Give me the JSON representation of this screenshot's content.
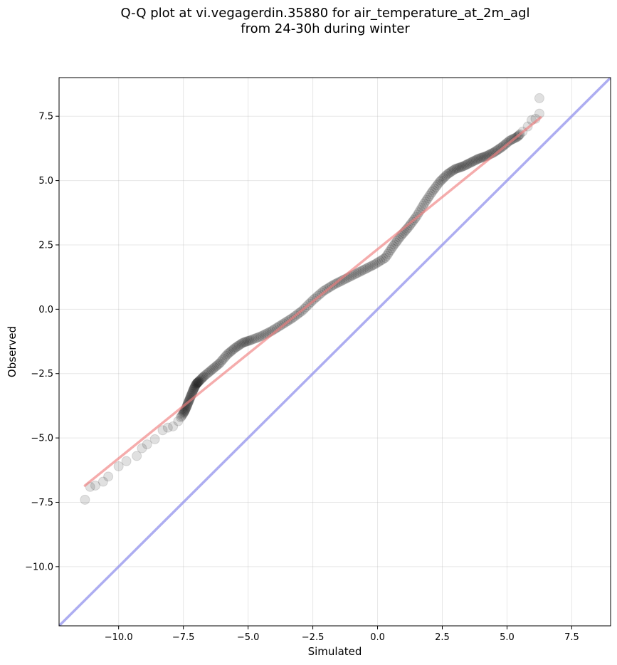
{
  "chart_data": {
    "type": "scatter",
    "title_line1": "Q-Q plot at vi.vegagerdin.35880 for air_temperature_at_2m_agl",
    "title_line2": "from 24-30h during winter",
    "xlabel": "Simulated",
    "ylabel": "Observed",
    "xlim": [
      -12.3,
      9.0
    ],
    "ylim": [
      -12.3,
      9.0
    ],
    "xticks": [
      -10.0,
      -7.5,
      -5.0,
      -2.5,
      0.0,
      2.5,
      5.0,
      7.5
    ],
    "yticks": [
      -10.0,
      -7.5,
      -5.0,
      -2.5,
      0.0,
      2.5,
      5.0,
      7.5
    ],
    "xtick_labels": [
      "−10.0",
      "−7.5",
      "−5.0",
      "−2.5",
      "0.0",
      "2.5",
      "5.0",
      "7.5"
    ],
    "ytick_labels": [
      "−10.0",
      "−7.5",
      "−5.0",
      "−2.5",
      "0.0",
      "2.5",
      "5.0",
      "7.5"
    ],
    "grid": true,
    "series": [
      {
        "kind": "points",
        "color": "#000000",
        "x": [
          -11.3,
          -11.1,
          -10.9,
          -10.6,
          -10.4,
          -10.0,
          -9.7,
          -9.3,
          -9.1,
          -8.9,
          -8.6,
          -8.3,
          -8.1,
          -7.9,
          -7.7,
          -7.5,
          -7.4,
          -7.3,
          -7.2,
          -7.1,
          -7.0,
          -6.9,
          -6.7,
          -6.4,
          -6.1,
          -5.8,
          -5.5,
          -5.2,
          -4.9,
          -4.5,
          -4.1,
          -3.7,
          -3.3,
          -2.9,
          -2.5,
          -2.1,
          -1.7,
          -1.3,
          -0.9,
          -0.5,
          -0.1,
          0.3,
          0.6,
          0.9,
          1.2,
          1.5,
          1.8,
          2.1,
          2.4,
          2.7,
          3.0,
          3.3,
          3.6,
          3.9,
          4.2,
          4.5,
          4.8,
          5.1,
          5.4,
          5.6,
          5.8,
          5.95,
          6.1,
          6.25,
          6.25
        ],
        "y": [
          -7.4,
          -6.9,
          -6.85,
          -6.7,
          -6.5,
          -6.1,
          -5.9,
          -5.7,
          -5.4,
          -5.25,
          -5.05,
          -4.7,
          -4.6,
          -4.55,
          -4.35,
          -4.05,
          -3.85,
          -3.6,
          -3.35,
          -3.1,
          -2.9,
          -2.8,
          -2.6,
          -2.35,
          -2.1,
          -1.75,
          -1.5,
          -1.3,
          -1.2,
          -1.05,
          -0.85,
          -0.6,
          -0.35,
          -0.05,
          0.35,
          0.7,
          0.95,
          1.15,
          1.35,
          1.55,
          1.75,
          2.0,
          2.45,
          2.85,
          3.2,
          3.6,
          4.1,
          4.55,
          4.95,
          5.25,
          5.45,
          5.55,
          5.7,
          5.85,
          5.95,
          6.1,
          6.3,
          6.55,
          6.7,
          6.9,
          7.1,
          7.35,
          7.4,
          7.6,
          8.2
        ]
      },
      {
        "kind": "fit-line",
        "color": "#f08080",
        "x": [
          -11.3,
          6.3
        ],
        "y": [
          -6.85,
          7.45
        ]
      },
      {
        "kind": "identity-line",
        "color": "#9999ee",
        "x": [
          -12.3,
          9.0
        ],
        "y": [
          -12.3,
          9.0
        ]
      }
    ]
  }
}
